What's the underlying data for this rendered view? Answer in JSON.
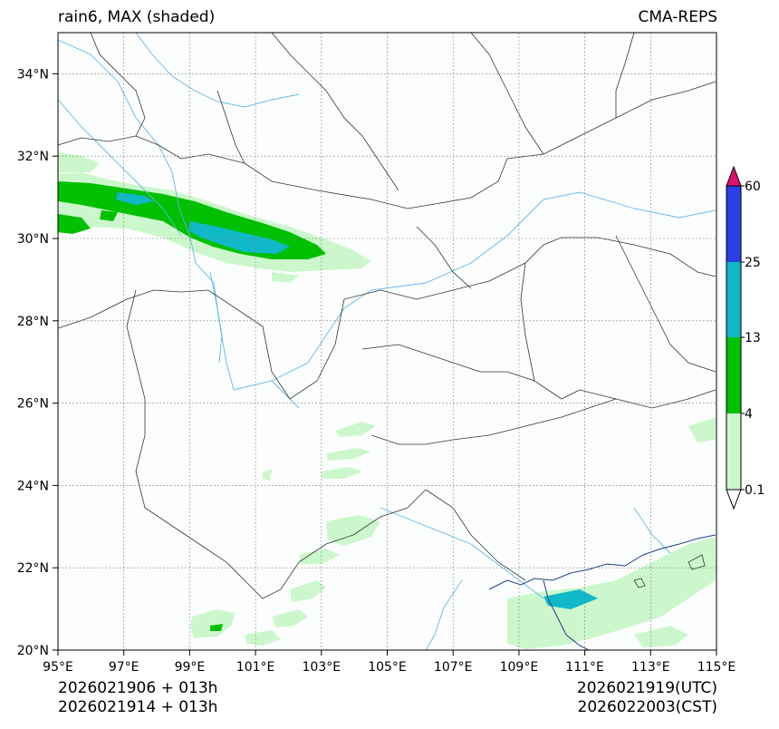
{
  "header": {
    "title_left": "rain6, MAX (shaded)",
    "title_right": "CMA-REPS"
  },
  "axes": {
    "lat_ticks": [
      "34°N",
      "32°N",
      "30°N",
      "28°N",
      "26°N",
      "24°N",
      "22°N",
      "20°N"
    ],
    "lon_ticks": [
      "95°E",
      "97°E",
      "99°E",
      "101°E",
      "103°E",
      "105°E",
      "107°E",
      "109°E",
      "111°E",
      "113°E",
      "115°E"
    ]
  },
  "colorbar": {
    "levels": [
      "60",
      "25",
      "13",
      "4",
      "0.1"
    ],
    "colors": {
      "extend_max": "#e0106e",
      "band_25_60": "#2a3fe6",
      "band_13_25": "#10b8c8",
      "band_4_13": "#00c000",
      "band_0_4": "#ccf7cc",
      "extend_min": "#ffffff"
    }
  },
  "footer": {
    "init_utc": "2026021906  +  013h",
    "init_cst": "2026021914  +  013h",
    "valid_utc": "2026021919(UTC)",
    "valid_cst": "2026022003(CST)"
  }
}
